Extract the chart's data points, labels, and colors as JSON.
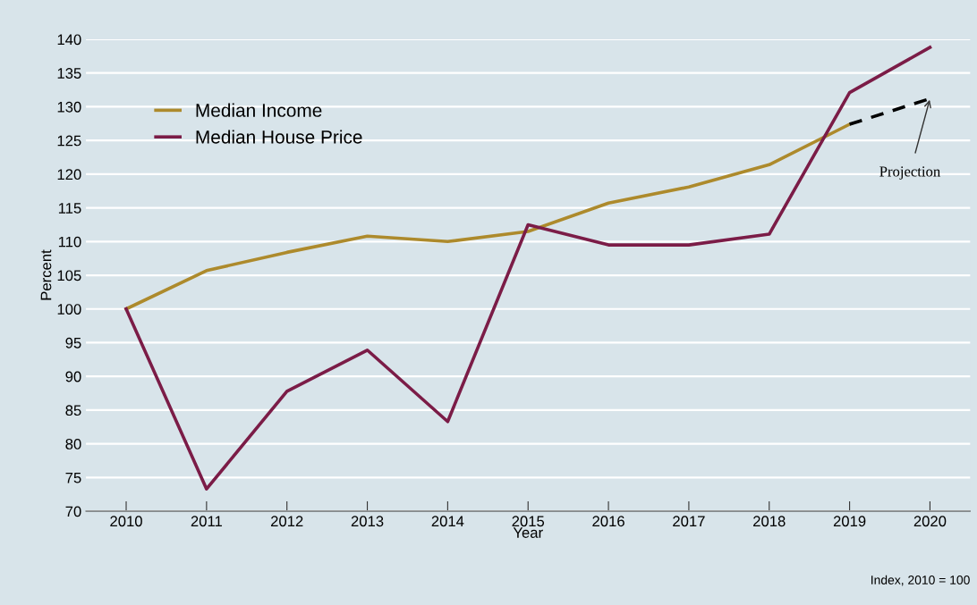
{
  "chart_data": {
    "type": "line",
    "xlabel": "Year",
    "ylabel": "Percent",
    "categories": [
      "2010",
      "2011",
      "2012",
      "2013",
      "2014",
      "2015",
      "2016",
      "2017",
      "2018",
      "2019",
      "2020"
    ],
    "series": [
      {
        "name": "Median Income",
        "color": "#ad8a2c",
        "values": [
          100,
          105.7,
          108.4,
          110.8,
          110,
          111.5,
          115.7,
          118.1,
          121.4,
          127.4,
          null
        ]
      },
      {
        "name": "Median House Price",
        "color": "#7b1c47",
        "values": [
          100,
          73.3,
          87.8,
          93.9,
          83.3,
          112.5,
          109.5,
          109.5,
          111.1,
          132.1,
          138.8
        ]
      },
      {
        "color": "#000000",
        "line_style": "dashed",
        "values": [
          null,
          null,
          null,
          null,
          null,
          null,
          null,
          null,
          null,
          127.4,
          131.2
        ]
      }
    ],
    "ylim": [
      70,
      140
    ],
    "yticks": [
      70,
      75,
      80,
      85,
      90,
      95,
      100,
      105,
      110,
      115,
      120,
      125,
      130,
      135,
      140
    ],
    "grid": "y",
    "legend": "top left",
    "marker": "none",
    "annotations": [
      {
        "text": "Projection",
        "x": "2020",
        "y": 131.2
      },
      "Index, 2010 = 100"
    ]
  }
}
